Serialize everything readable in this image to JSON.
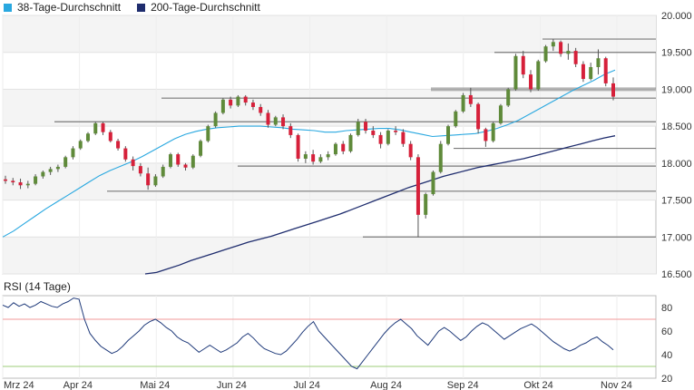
{
  "legend": [
    {
      "label": "38-Tage-Durchschnitt",
      "color": "#29a8e0"
    },
    {
      "label": "200-Tage-Durchschnitt",
      "color": "#1f2d6e"
    }
  ],
  "rsi_title": "RSI (14 Tage)",
  "colors": {
    "up": "#5f8a3a",
    "down": "#d6203a",
    "wick": "#555555",
    "ma38": "#29a8e0",
    "ma200": "#1f2d6e",
    "rsi": "#1f3a7a",
    "rsi_upper": "#f19a9a",
    "rsi_lower": "#9ccc7a",
    "band": "#f4f4f4"
  },
  "chart_data": [
    {
      "type": "candlestick",
      "title": "",
      "x_tick_labels": [
        "Mrz 24",
        "Apr 24",
        "Mai 24",
        "Jun 24",
        "Jul 24",
        "Aug 24",
        "Sep 24",
        "Okt 24",
        "Nov 24"
      ],
      "y_tick_labels": [
        "16.500",
        "17.000",
        "17.500",
        "18.000",
        "18.500",
        "19.000",
        "19.500",
        "20.000"
      ],
      "ylim": [
        16500,
        20000
      ],
      "grid": true,
      "legend_position": "top-left",
      "series": [
        {
          "name": "38-Tage-Durchschnitt",
          "values": [
            17000,
            17080,
            17180,
            17280,
            17380,
            17470,
            17560,
            17650,
            17740,
            17830,
            17900,
            17960,
            18020,
            18090,
            18170,
            18250,
            18330,
            18390,
            18430,
            18460,
            18480,
            18490,
            18500,
            18500,
            18500,
            18490,
            18480,
            18460,
            18450,
            18440,
            18420,
            18420,
            18440,
            18450,
            18460,
            18470,
            18470,
            18450,
            18420,
            18390,
            18360,
            18370,
            18380,
            18390,
            18400,
            18430,
            18470,
            18520,
            18580,
            18660,
            18740,
            18820,
            18900,
            18980,
            19050,
            19120,
            19200,
            19260
          ]
        },
        {
          "name": "200-Tage-Durchschnitt",
          "values": [
            16500,
            16520,
            16570,
            16620,
            16680,
            16730,
            16780,
            16830,
            16880,
            16930,
            16970,
            17010,
            17060,
            17110,
            17160,
            17210,
            17260,
            17310,
            17370,
            17430,
            17490,
            17550,
            17610,
            17670,
            17720,
            17770,
            17820,
            17860,
            17900,
            17940,
            17970,
            18000,
            18030,
            18060,
            18100,
            18140,
            18180,
            18220,
            18260,
            18300,
            18340,
            18370
          ]
        }
      ],
      "candles": [
        [
          17780,
          17830,
          17720,
          17760
        ],
        [
          17760,
          17800,
          17700,
          17740
        ],
        [
          17740,
          17790,
          17650,
          17700
        ],
        [
          17700,
          17760,
          17660,
          17720
        ],
        [
          17720,
          17850,
          17700,
          17820
        ],
        [
          17820,
          17900,
          17790,
          17880
        ],
        [
          17880,
          17950,
          17840,
          17920
        ],
        [
          17920,
          17980,
          17880,
          17950
        ],
        [
          17950,
          18100,
          17930,
          18080
        ],
        [
          18080,
          18230,
          18050,
          18200
        ],
        [
          18200,
          18320,
          18180,
          18300
        ],
        [
          18300,
          18420,
          18280,
          18400
        ],
        [
          18400,
          18560,
          18380,
          18540
        ],
        [
          18540,
          18560,
          18380,
          18420
        ],
        [
          18420,
          18450,
          18280,
          18300
        ],
        [
          18300,
          18330,
          18170,
          18200
        ],
        [
          18200,
          18230,
          18020,
          18050
        ],
        [
          18050,
          18090,
          17900,
          17960
        ],
        [
          17960,
          18000,
          17820,
          17860
        ],
        [
          17860,
          17940,
          17640,
          17700
        ],
        [
          17700,
          17850,
          17680,
          17820
        ],
        [
          17820,
          17980,
          17800,
          17950
        ],
        [
          17950,
          18140,
          17930,
          18120
        ],
        [
          18120,
          18140,
          17950,
          17980
        ],
        [
          17980,
          18000,
          17900,
          17940
        ],
        [
          17940,
          18120,
          17920,
          18100
        ],
        [
          18100,
          18320,
          18080,
          18300
        ],
        [
          18300,
          18520,
          18280,
          18500
        ],
        [
          18500,
          18700,
          18480,
          18680
        ],
        [
          18680,
          18880,
          18660,
          18860
        ],
        [
          18860,
          18900,
          18740,
          18780
        ],
        [
          18780,
          18920,
          18760,
          18900
        ],
        [
          18900,
          18920,
          18780,
          18820
        ],
        [
          18820,
          18860,
          18720,
          18760
        ],
        [
          18760,
          18800,
          18640,
          18680
        ],
        [
          18680,
          18720,
          18480,
          18520
        ],
        [
          18520,
          18640,
          18500,
          18620
        ],
        [
          18620,
          18660,
          18460,
          18500
        ],
        [
          18500,
          18540,
          18340,
          18380
        ],
        [
          18380,
          18400,
          18020,
          18060
        ],
        [
          18060,
          18160,
          18000,
          18120
        ],
        [
          18120,
          18180,
          17980,
          18020
        ],
        [
          18020,
          18120,
          18000,
          18080
        ],
        [
          18080,
          18160,
          18040,
          18120
        ],
        [
          18120,
          18280,
          18100,
          18260
        ],
        [
          18260,
          18300,
          18120,
          18160
        ],
        [
          18160,
          18400,
          18140,
          18380
        ],
        [
          18380,
          18600,
          18360,
          18560
        ],
        [
          18560,
          18600,
          18400,
          18440
        ],
        [
          18440,
          18500,
          18340,
          18380
        ],
        [
          18380,
          18420,
          18200,
          18260
        ],
        [
          18260,
          18460,
          18240,
          18440
        ],
        [
          18440,
          18500,
          18380,
          18420
        ],
        [
          18420,
          18460,
          18220,
          18260
        ],
        [
          18260,
          18300,
          18040,
          18080
        ],
        [
          18080,
          18120,
          17000,
          17300
        ],
        [
          17300,
          17600,
          17250,
          17580
        ],
        [
          17580,
          17900,
          17560,
          17880
        ],
        [
          17880,
          18300,
          17860,
          18260
        ],
        [
          18260,
          18520,
          18240,
          18500
        ],
        [
          18500,
          18720,
          18480,
          18700
        ],
        [
          18700,
          18950,
          18680,
          18920
        ],
        [
          18920,
          19020,
          18760,
          18800
        ],
        [
          18800,
          18820,
          18400,
          18460
        ],
        [
          18460,
          18480,
          18220,
          18300
        ],
        [
          18300,
          18560,
          18280,
          18540
        ],
        [
          18540,
          18800,
          18520,
          18780
        ],
        [
          18780,
          19020,
          18760,
          19000
        ],
        [
          19000,
          19480,
          18980,
          19450
        ],
        [
          19450,
          19520,
          19150,
          19200
        ],
        [
          19200,
          19260,
          18960,
          19000
        ],
        [
          19000,
          19400,
          18980,
          19380
        ],
        [
          19380,
          19600,
          19360,
          19580
        ],
        [
          19580,
          19680,
          19520,
          19640
        ],
        [
          19640,
          19660,
          19440,
          19480
        ],
        [
          19480,
          19620,
          19400,
          19520
        ],
        [
          19520,
          19560,
          19300,
          19340
        ],
        [
          19340,
          19380,
          19100,
          19140
        ],
        [
          19140,
          19360,
          19120,
          19300
        ],
        [
          19300,
          19540,
          19200,
          19420
        ],
        [
          19420,
          19440,
          19040,
          19080
        ],
        [
          19080,
          19160,
          18850,
          18900
        ]
      ],
      "horizontal_levels": [
        17000,
        17620,
        17960,
        18200,
        18560,
        18880,
        19000,
        19500,
        19680
      ]
    },
    {
      "type": "line",
      "title": "RSI (14 Tage)",
      "y_tick_labels": [
        "20",
        "40",
        "60",
        "80"
      ],
      "ylim": [
        20,
        90
      ],
      "reference_lines": [
        70,
        30
      ],
      "series": [
        {
          "name": "RSI (14 Tage)",
          "values": [
            82,
            80,
            84,
            81,
            83,
            80,
            82,
            85,
            83,
            81,
            80,
            83,
            85,
            88,
            87,
            70,
            58,
            52,
            47,
            44,
            41,
            43,
            47,
            52,
            56,
            60,
            65,
            68,
            70,
            67,
            63,
            60,
            55,
            52,
            50,
            46,
            42,
            45,
            48,
            45,
            42,
            44,
            47,
            50,
            55,
            58,
            54,
            49,
            45,
            43,
            41,
            40,
            43,
            48,
            53,
            59,
            64,
            68,
            60,
            55,
            50,
            45,
            40,
            35,
            30,
            28,
            34,
            40,
            46,
            52,
            58,
            63,
            67,
            70,
            66,
            62,
            56,
            52,
            48,
            54,
            60,
            63,
            60,
            56,
            52,
            55,
            60,
            64,
            67,
            65,
            61,
            57,
            53,
            56,
            59,
            62,
            64,
            66,
            63,
            59,
            55,
            51,
            48,
            45,
            43,
            45,
            48,
            50,
            53,
            55,
            51,
            48,
            44
          ]
        }
      ]
    }
  ]
}
